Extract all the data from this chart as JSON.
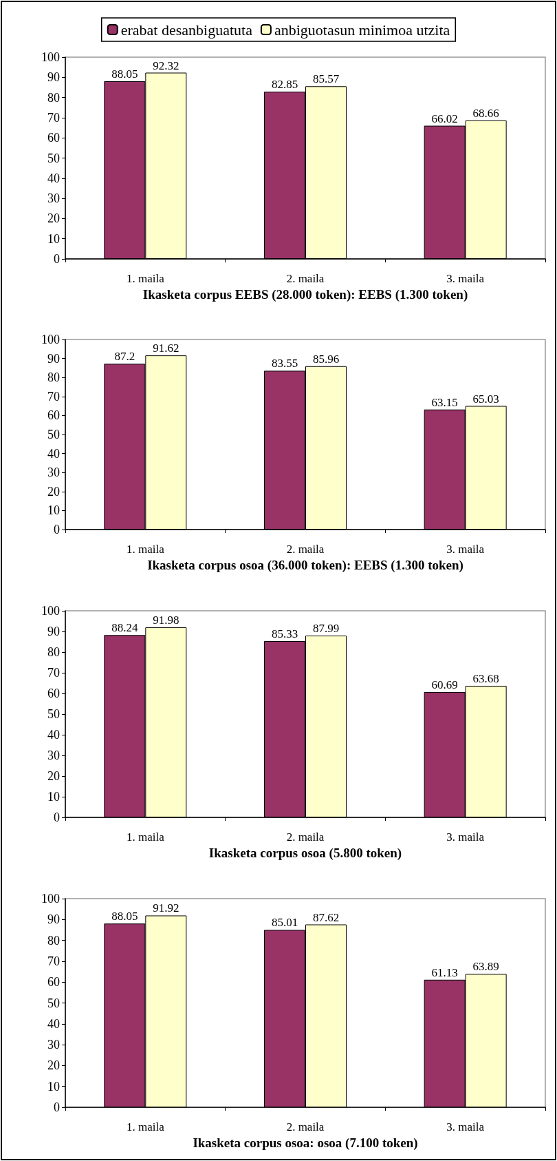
{
  "chart_data": [
    {
      "type": "bar",
      "xlabel": "Ikasketa corpus EEBS (28.000 token): EEBS (1.300 token)",
      "categories": [
        "1. maila",
        "2. maila",
        "3. maila"
      ],
      "series": [
        {
          "name": "erabat desanbiguatuta",
          "color": "#993366",
          "values": [
            88.05,
            82.85,
            66.02
          ]
        },
        {
          "name": "anbiguotasun minimoa utzita",
          "color": "#ffffcc",
          "values": [
            92.32,
            85.57,
            68.66
          ]
        }
      ],
      "ylim": [
        0,
        100
      ],
      "yticks": [
        0,
        10,
        20,
        30,
        40,
        50,
        60,
        70,
        80,
        90,
        100
      ],
      "data_labels": true,
      "grid": false,
      "legend": "top"
    },
    {
      "type": "bar",
      "xlabel": "Ikasketa corpus osoa (36.000 token): EEBS (1.300 token)",
      "categories": [
        "1. maila",
        "2. maila",
        "3. maila"
      ],
      "series": [
        {
          "color": "#993366",
          "values": [
            87.2,
            83.55,
            63.15
          ]
        },
        {
          "color": "#ffffcc",
          "values": [
            91.62,
            85.96,
            65.03
          ]
        }
      ],
      "ylim": [
        0,
        100
      ],
      "yticks": [
        0,
        10,
        20,
        30,
        40,
        50,
        60,
        70,
        80,
        90,
        100
      ],
      "data_labels": true,
      "grid": false
    },
    {
      "type": "bar",
      "xlabel": "Ikasketa corpus osoa (5.800 token)",
      "categories": [
        "1. maila",
        "2. maila",
        "3. maila"
      ],
      "series": [
        {
          "color": "#993366",
          "values": [
            88.24,
            85.33,
            60.69
          ]
        },
        {
          "color": "#ffffcc",
          "values": [
            91.98,
            87.99,
            63.68
          ]
        }
      ],
      "ylim": [
        0,
        100
      ],
      "yticks": [
        0,
        10,
        20,
        30,
        40,
        50,
        60,
        70,
        80,
        90,
        100
      ],
      "data_labels": true,
      "grid": false
    },
    {
      "type": "bar",
      "xlabel": "Ikasketa corpus osoa: osoa (7.100 token)",
      "categories": [
        "1. maila",
        "2. maila",
        "3. maila"
      ],
      "series": [
        {
          "color": "#993366",
          "values": [
            88.05,
            85.01,
            61.13
          ]
        },
        {
          "color": "#ffffcc",
          "values": [
            91.92,
            87.62,
            63.89
          ]
        }
      ],
      "ylim": [
        0,
        100
      ],
      "yticks": [
        0,
        10,
        20,
        30,
        40,
        50,
        60,
        70,
        80,
        90,
        100
      ],
      "data_labels": true,
      "grid": false
    }
  ]
}
